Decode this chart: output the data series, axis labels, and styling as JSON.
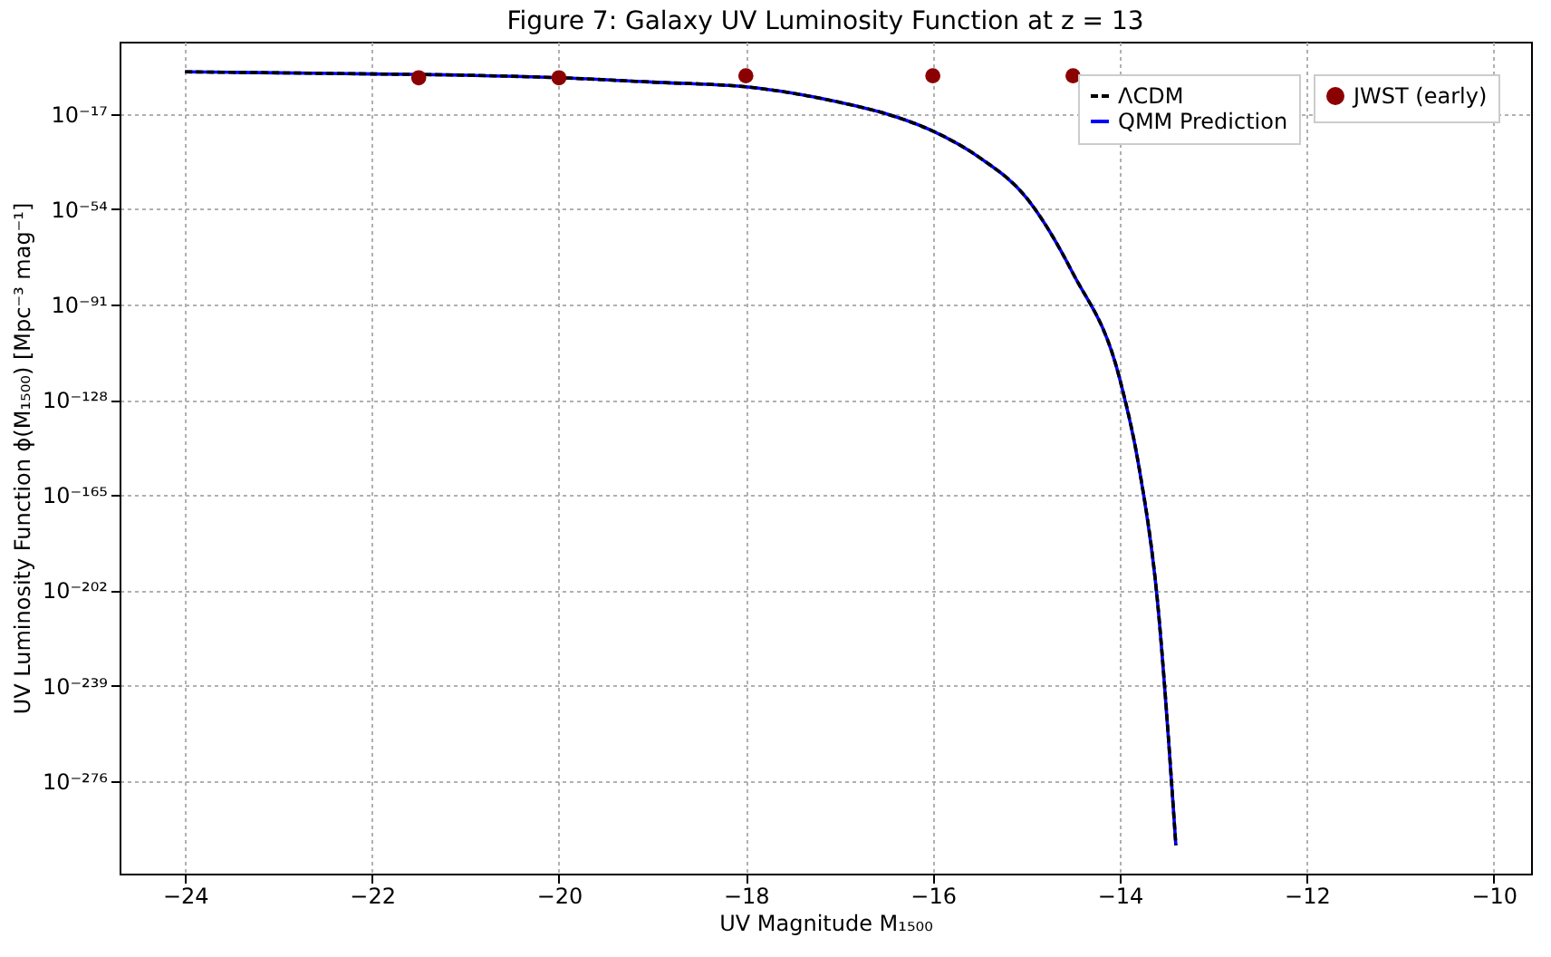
{
  "chart_data": {
    "type": "line",
    "title": "Figure 7: Galaxy UV Luminosity Function at z = 13",
    "xlabel": "UV Magnitude M₁₅₀₀",
    "ylabel": "UV Luminosity Function ϕ(M₁₅₀₀) [Mpc⁻³ mag⁻¹]",
    "log": "y",
    "grid": true,
    "legend": "top right",
    "xlim": [
      -24.7,
      -9.6
    ],
    "xticks": [
      -24,
      -22,
      -20,
      -18,
      -16,
      -14,
      -12,
      -10
    ],
    "ylim": [
      1e-312,
      100000000000.0
    ],
    "yticks": [
      {
        "value": 1e-17,
        "label": "10⁻¹⁷"
      },
      {
        "value": 1e-54,
        "label": "10⁻⁵⁴"
      },
      {
        "value": 1e-91,
        "label": "10⁻⁹¹"
      },
      {
        "value": 1e-128,
        "label": "10⁻¹²⁸"
      },
      {
        "value": 1e-165,
        "label": "10⁻¹⁶⁵"
      },
      {
        "value": 1e-202,
        "label": "10⁻²⁰²"
      },
      {
        "value": 1e-239,
        "label": "10⁻²³⁹"
      },
      {
        "value": 1e-276,
        "label": "10⁻²⁷⁶"
      }
    ],
    "series": [
      {
        "name": "ΛCDM",
        "line_style": "dashed",
        "color": "#000000",
        "x": [
          -24,
          -23,
          -22,
          -21,
          -20,
          -19,
          -18,
          -17.5,
          -17,
          -16.5,
          -16,
          -15.5,
          -15,
          -14.5,
          -14,
          -13.8,
          -13.6,
          -13.4
        ],
        "values": [
          0.2,
          0.08,
          0.03,
          0.01,
          0.001,
          2e-05,
          3e-07,
          1e-09,
          3e-13,
          1e-17,
          2e-24,
          1e-34,
          3e-50,
          1e-79,
          1e-120,
          1e-153,
          1e-205,
          1e-301
        ]
      },
      {
        "name": "QMM Prediction",
        "line_style": "solid",
        "color": "#0000ff",
        "x": [
          -24,
          -23,
          -22,
          -21,
          -20,
          -19,
          -18,
          -17.5,
          -17,
          -16.5,
          -16,
          -15.5,
          -15,
          -14.5,
          -14,
          -13.8,
          -13.6,
          -13.4
        ],
        "values": [
          0.2,
          0.08,
          0.03,
          0.01,
          0.001,
          2e-05,
          3e-07,
          1e-09,
          3e-13,
          1e-17,
          2e-24,
          1e-34,
          3e-50,
          1e-79,
          1e-120,
          1e-153,
          1e-205,
          1e-301
        ]
      },
      {
        "name": "JWST (early)",
        "type": "scatter",
        "marker": "circle",
        "color": "#8b0000",
        "x": [
          -21.5,
          -20,
          -18,
          -16,
          -14.5
        ],
        "values": [
          0.001,
          0.001,
          0.006,
          0.006,
          0.006
        ]
      }
    ]
  }
}
